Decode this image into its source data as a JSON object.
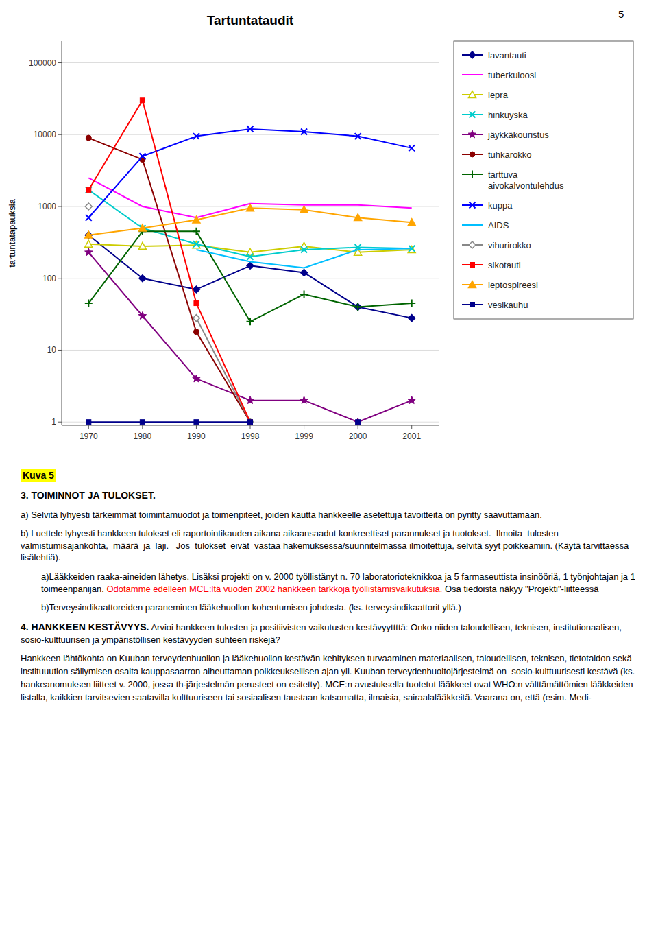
{
  "chart_data": {
    "type": "line",
    "title": "Tartuntataudit",
    "y_label": "tartuntatapauksia",
    "categories": [
      "1970",
      "1980",
      "1990",
      "1998",
      "1999",
      "2000",
      "2001"
    ],
    "log": "y",
    "ylim": [
      0.9,
      200000
    ],
    "yticks": [
      1,
      10,
      100,
      1000,
      10000,
      100000
    ],
    "grid": true,
    "legend": "right",
    "series": [
      {
        "name": "lavantauti",
        "color": "#00008B",
        "marker": "diamond",
        "values": [
          400,
          100,
          70,
          150,
          120,
          40,
          28
        ]
      },
      {
        "name": "tuberkuloosi",
        "color": "#FF00FF",
        "marker": "none",
        "values": [
          2500,
          1000,
          700,
          1100,
          1050,
          1050,
          950
        ]
      },
      {
        "name": "lepra",
        "color": "#CCCC00",
        "marker": "triangle-open",
        "values": [
          300,
          280,
          290,
          230,
          280,
          230,
          250
        ]
      },
      {
        "name": "hinkuyskä",
        "color": "#00CCCC",
        "marker": "x",
        "values": [
          1700,
          500,
          300,
          200,
          250,
          270,
          260
        ]
      },
      {
        "name": "jäykkäkouristus",
        "color": "#800080",
        "marker": "star",
        "values": [
          230,
          30,
          4,
          2,
          2,
          1,
          2
        ]
      },
      {
        "name": "tuhkarokko",
        "color": "#8B0000",
        "marker": "circle",
        "values": [
          9000,
          4500,
          18,
          1,
          null,
          null,
          null
        ]
      },
      {
        "name": "tarttuva\naivokalvontulehdus",
        "color": "#006400",
        "marker": "plus",
        "values": [
          45,
          450,
          450,
          25,
          60,
          40,
          45
        ]
      },
      {
        "name": "kuppa",
        "color": "#0000FF",
        "marker": "x",
        "values": [
          700,
          5000,
          9500,
          12000,
          11000,
          9500,
          6500
        ]
      },
      {
        "name": "AIDS",
        "color": "#00BFFF",
        "marker": "none",
        "values": [
          null,
          null,
          250,
          170,
          140,
          250,
          260
        ]
      },
      {
        "name": "vihurirokko",
        "color": "#888888",
        "marker": "diamond-open",
        "values": [
          1000,
          null,
          28,
          1,
          null,
          null,
          null
        ]
      },
      {
        "name": "sikotauti",
        "color": "#FF0000",
        "marker": "square",
        "values": [
          1700,
          30000,
          45,
          1,
          null,
          null,
          null
        ]
      },
      {
        "name": "leptospireesi",
        "color": "#FFA500",
        "marker": "triangle",
        "values": [
          400,
          500,
          650,
          950,
          900,
          700,
          600
        ]
      },
      {
        "name": "vesikauhu",
        "color": "#00008B",
        "marker": "square",
        "values": [
          1,
          1,
          1,
          1,
          null,
          1,
          null
        ]
      }
    ]
  },
  "page_number": "5",
  "text_section": {
    "kuva5": "Kuva 5",
    "s3_title": "3. TOIMINNOT JA TULOKSET.",
    "s3a_q": "a) Selvitä lyhyesti tärkeimmät toimintamuodot ja toimenpiteet, joiden kautta hankkeelle asetettuja tavoitteita on pyritty saavuttamaan.",
    "s3b_q": "b) Luettele lyhyesti hankkeen tulokset eli raportointikauden aikana aikaansaadut konkreettiset parannukset ja tuotokset.  Ilmoita  tulosten  valmistumisajankohta,  määrä  ja  laji.   Jos  tulokset  eivät  vastaa hakemuksessa/suunnitelmassa ilmoitettuja, selvitä syyt poikkeamiin. (Käytä tarvittaessa lisälehtiä).",
    "s3a_ans1": "a)Lääkkeiden raaka-aineiden lähetys. Lisäksi projekti on v. 2000 työllistänyt n. 70 laboratorioteknikkoa ja 5 farmaseuttista insinööriä, 1 työnjohtajan ja 1 toimeenpanijan. ",
    "s3a_red": "Odotamme edelleen MCE:ltä vuoden 2002 hankkeen tarkkoja työllistämisvaikutuksia.",
    "s3a_ans2": " Osa tiedoista näkyy \"Projekti\"-liitteessä",
    "s3b_ans": "b)Terveysindikaattoreiden paraneminen lääkehuollon kohentumisen johdosta. (ks. terveysindikaattorit yllä.)",
    "s4_title": "4. HANKKEEN KESTÄVYYS.",
    "s4_text": " Arvioi hankkeen tulosten ja positiivisten vaikutusten kestävyyttttä: Onko niiden taloudellisen, teknisen, institutionaalisen, sosio-kulttuurisen ja ympäristöllisen kestävyyden suhteen riskejä?",
    "s4_body": "Hankkeen lähtökohta on Kuuban terveydenhuollon ja lääkehuollon kestävän kehityksen turvaaminen materiaalisen, taloudellisen, teknisen, tietotaidon sekä instituuution säilymisen osalta kauppasaarron aiheuttaman poikkeuksellisen ajan yli. Kuuban terveydenhuoltojärjestelmä on  sosio-kulttuurisesti kestävä (ks. hankeanomuksen liitteet v. 2000, jossa th-järjestelmän perusteet on esitetty). MCE:n avustuksella tuotetut lääkkeet ovat WHO:n välttämättömien lääkkeiden listalla, kaikkien tarvitsevien saatavilla kulttuuriseen tai sosiaalisen taustaan katsomatta, ilmaisia, sairaalalääkkeitä. Vaarana on, että (esim. Medi-"
  }
}
